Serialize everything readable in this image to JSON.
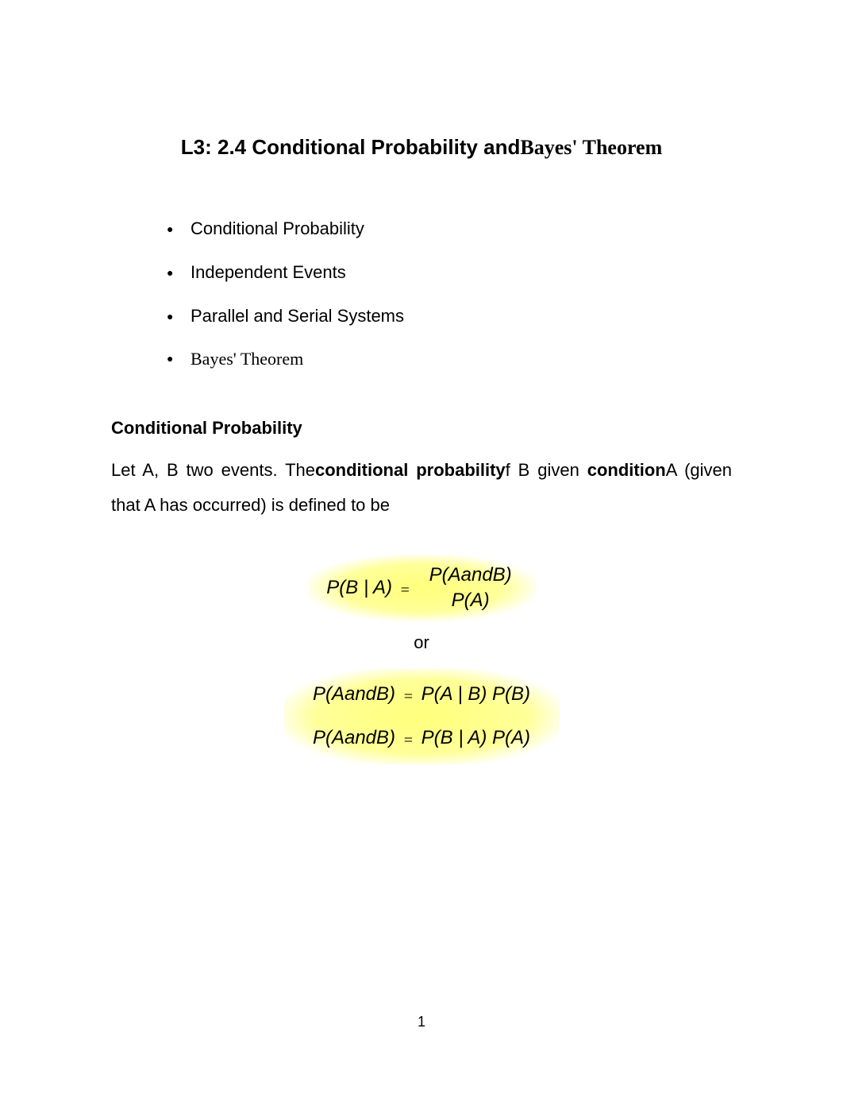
{
  "title": {
    "prefix": "L3:  2.4 ",
    "sans": "Conditional Probability and",
    "serif": "Bayes' Theorem"
  },
  "bullets": [
    {
      "text": "Conditional Probability",
      "font": "sans"
    },
    {
      "text": " Independent Events",
      "font": "sans"
    },
    {
      "text": "Parallel and Serial Systems",
      "font": "sans"
    },
    {
      "text": "Bayes' Theorem",
      "font": "serif"
    }
  ],
  "section_heading": "Conditional Probability",
  "paragraph": {
    "p1": "Let A, B two events. The",
    "b1": "conditional probability",
    "p2": "f B given ",
    "b2": "condition",
    "p3": "A (given that A has occurred) is defined to be"
  },
  "formulas": {
    "f1_left": "P(B | A)",
    "f1_num": "P(AandB)",
    "f1_den": "P(A)",
    "or": "or",
    "f2": "P(AandB)",
    "f2_right": "P(A | B) P(B)",
    "f3": "P(AandB)",
    "f3_right": "P(B | A) P(A)"
  },
  "page_number": "1",
  "colors": {
    "background": "#ffffff",
    "text": "#000000",
    "highlight": "#ffff80"
  },
  "typography": {
    "title_fontsize": 26,
    "body_fontsize": 22,
    "formula_fontsize": 24
  }
}
